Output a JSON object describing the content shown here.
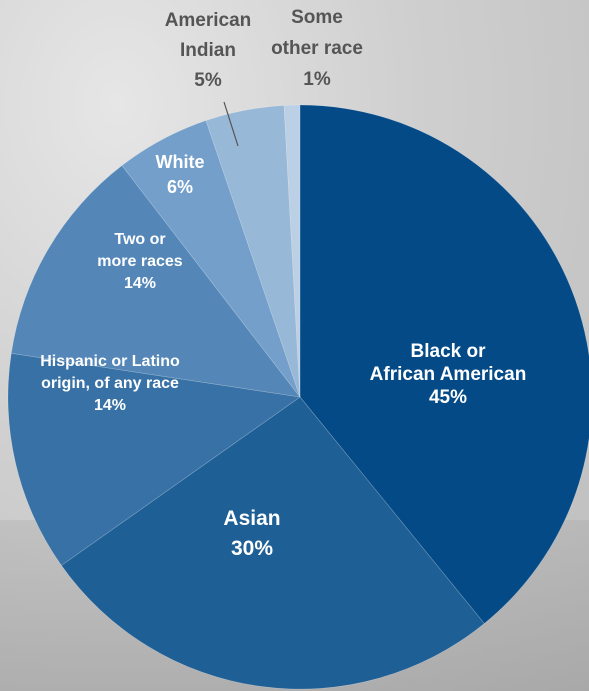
{
  "chart_data": {
    "type": "pie",
    "start": "12 o'clock",
    "direction": "clockwise",
    "slices": [
      {
        "label": [
          "Black or",
          "African American"
        ],
        "value": 45,
        "pct": "45%",
        "color": "#034a87",
        "text_color": "#ffffff",
        "label_placement": "inside"
      },
      {
        "label": [
          "Asian"
        ],
        "value": 30,
        "pct": "30%",
        "color": "#1e5f96",
        "text_color": "#ffffff",
        "label_placement": "inside"
      },
      {
        "label": [
          "Hispanic or Latino",
          "origin, of any race"
        ],
        "value": 14,
        "pct": "14%",
        "color": "#3871a5",
        "text_color": "#ffffff",
        "label_placement": "inside"
      },
      {
        "label": [
          "Two or",
          "more races"
        ],
        "value": 14,
        "pct": "14%",
        "color": "#5487b8",
        "text_color": "#ffffff",
        "label_placement": "inside"
      },
      {
        "label": [
          "White"
        ],
        "value": 6,
        "pct": "6%",
        "color": "#749fca",
        "text_color": "#ffffff",
        "label_placement": "inside"
      },
      {
        "label": [
          "American",
          "Indian"
        ],
        "value": 5,
        "pct": "5%",
        "color": "#98b8d8",
        "text_color": "#555555",
        "label_placement": "outside"
      },
      {
        "label": [
          "Some",
          "other race"
        ],
        "value": 1,
        "pct": "1%",
        "color": "#bcd0e5",
        "text_color": "#555555",
        "label_placement": "outside"
      }
    ]
  }
}
